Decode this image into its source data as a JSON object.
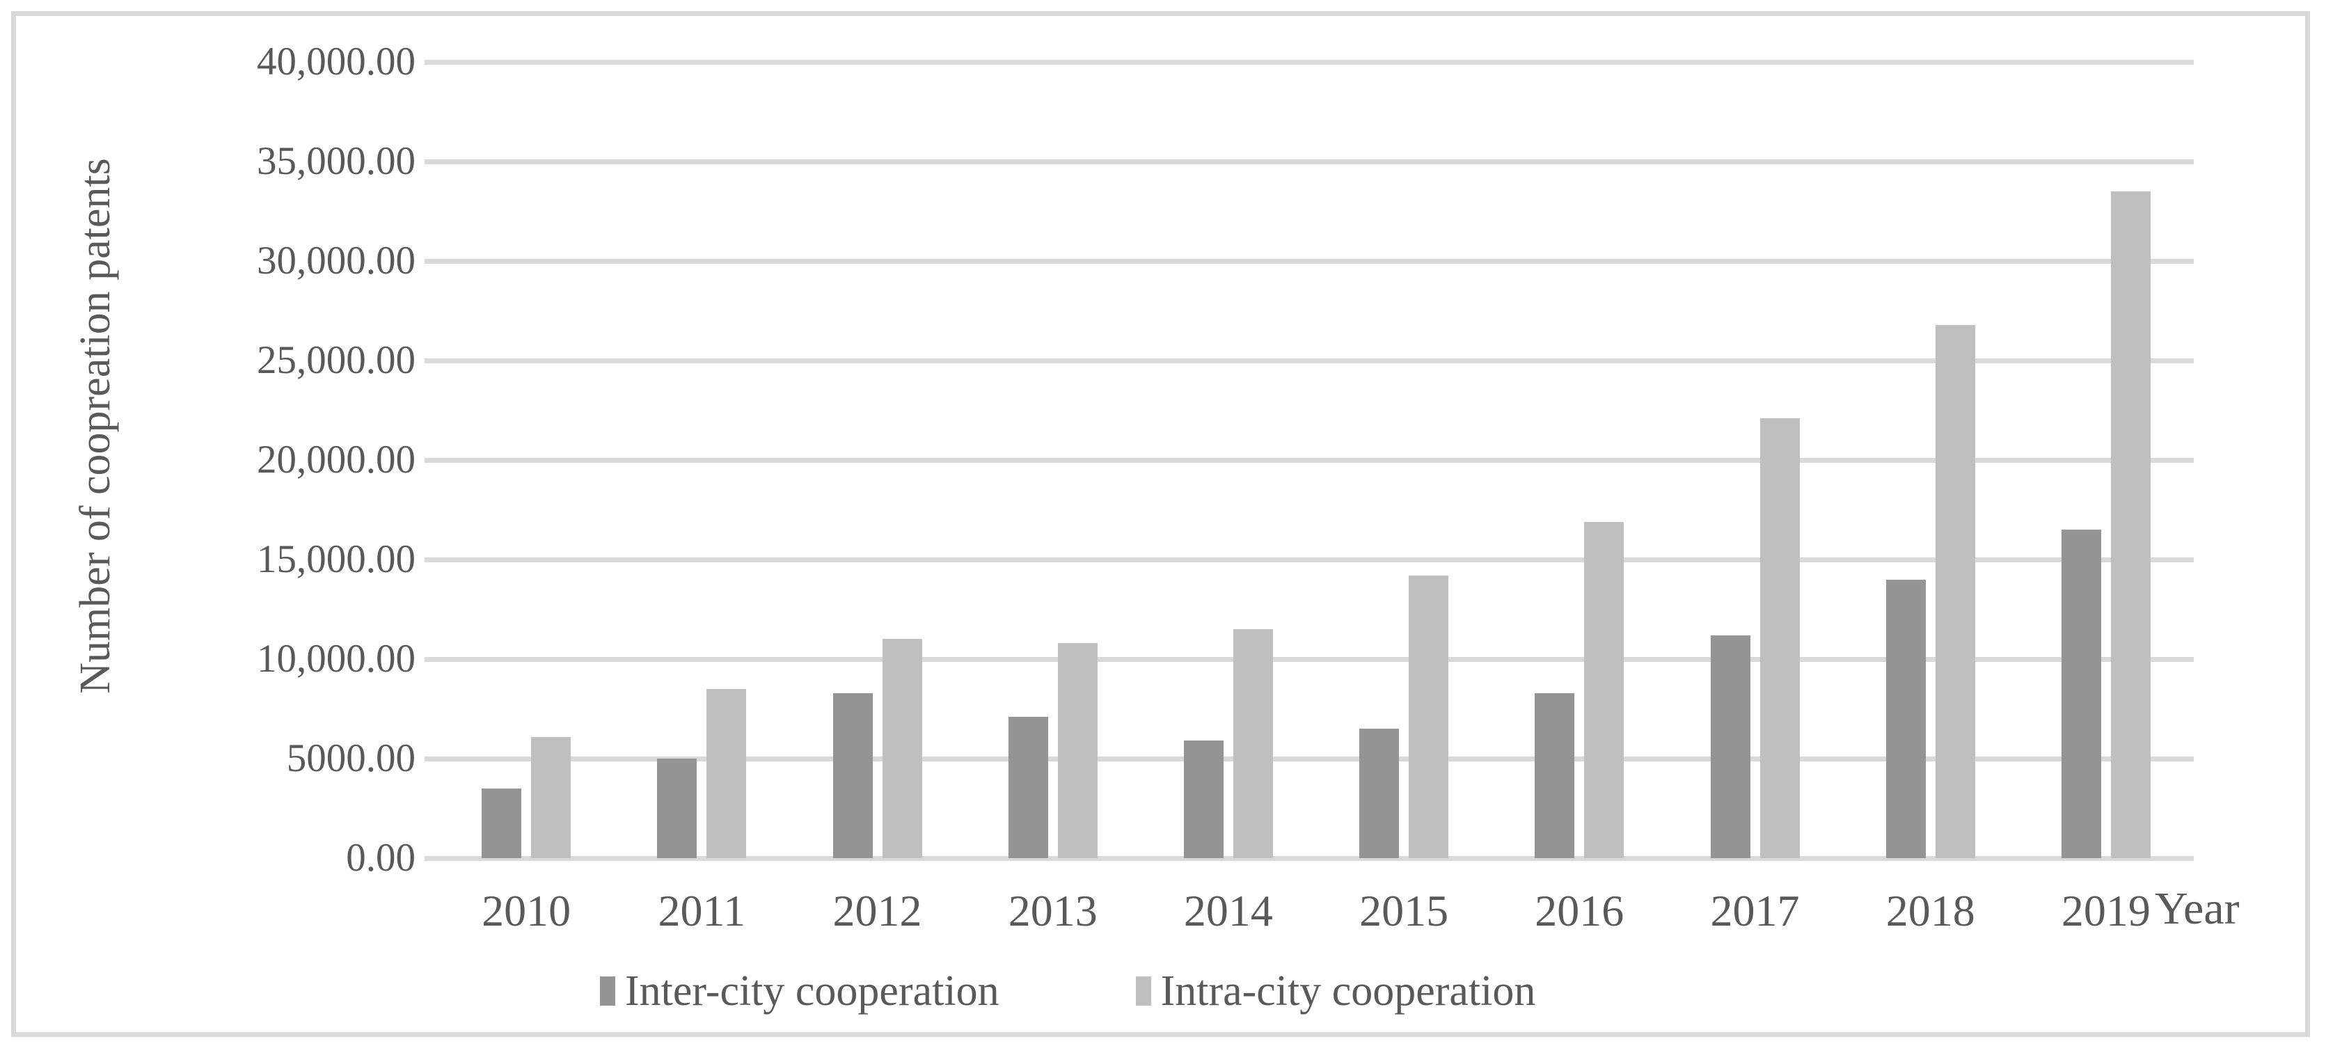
{
  "chart_data": {
    "type": "bar",
    "title": "",
    "categories": [
      "2010",
      "2011",
      "2012",
      "2013",
      "2014",
      "2015",
      "2016",
      "2017",
      "2018",
      "2019"
    ],
    "series": [
      {
        "name": "Inter-city cooperation",
        "color": "#949494",
        "values": [
          3500,
          5000,
          8300,
          7100,
          5900,
          6500,
          8300,
          11200,
          14000,
          16500
        ]
      },
      {
        "name": "Intra-city cooperation",
        "color": "#bfbfbf",
        "values": [
          6100,
          8500,
          11000,
          10800,
          11500,
          14200,
          16900,
          22100,
          26800,
          33500
        ]
      }
    ],
    "xlabel": "Year",
    "ylabel": "Number of coopreation patents",
    "ylim": [
      0,
      40000
    ],
    "ytick_step": 5000,
    "ytick_labels": [
      "0.00",
      "5000.00",
      "10,000.00",
      "15,000.00",
      "20,000.00",
      "25,000.00",
      "30,000.00",
      "35,000.00",
      "40,000.00"
    ],
    "grid": true,
    "legend_position": "bottom",
    "colors": {
      "grid": "#d9d9d9",
      "frame": "#d9d9d9",
      "text": "#595959",
      "background": "#ffffff"
    }
  }
}
